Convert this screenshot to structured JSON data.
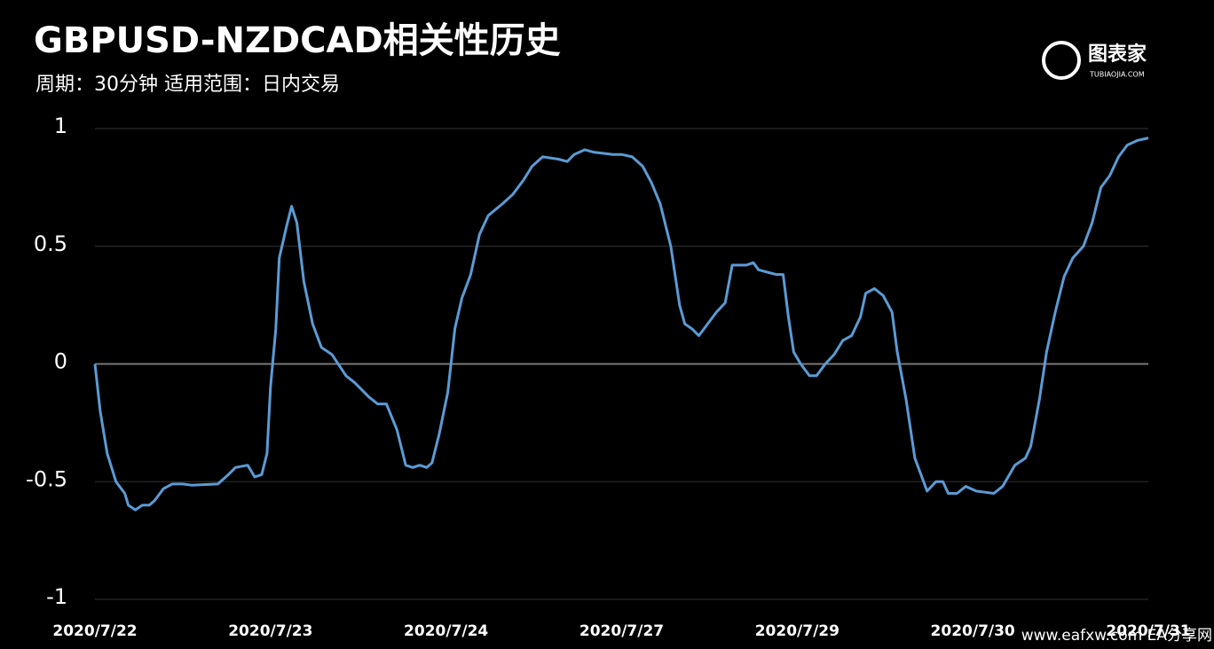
{
  "chart_data": {
    "type": "line",
    "title": "GBPUSD-NZDCAD相关性历史",
    "subtitle": "周期：30分钟  适用范围：日内交易",
    "logo": "图表家",
    "logo_sub": "TUBIAOJIA.COM",
    "watermark": "www.eafxw.com   EA分享网",
    "xlim": [
      0,
      6
    ],
    "xticks": [
      {
        "value": 0,
        "label": "2020/7/22"
      },
      {
        "value": 1,
        "label": "2020/7/23"
      },
      {
        "value": 2,
        "label": "2020/7/24"
      },
      {
        "value": 3,
        "label": "2020/7/27"
      },
      {
        "value": 4,
        "label": "2020/7/29"
      },
      {
        "value": 5,
        "label": "2020/7/30"
      },
      {
        "value": 6,
        "label": "2020/7/31"
      }
    ],
    "ylim": [
      -1,
      1
    ],
    "yticks": [
      1,
      0.5,
      0,
      -0.5,
      -1
    ],
    "grid": true,
    "x": [
      0,
      0.03,
      0.07,
      0.12,
      0.17,
      0.19,
      0.23,
      0.27,
      0.31,
      0.34,
      0.39,
      0.44,
      0.5,
      0.55,
      0.7,
      0.76,
      0.8,
      0.87,
      0.91,
      0.95,
      0.98,
      1.0,
      1.03,
      1.05,
      1.09,
      1.12,
      1.15,
      1.19,
      1.24,
      1.29,
      1.35,
      1.43,
      1.48,
      1.56,
      1.61,
      1.66,
      1.72,
      1.77,
      1.81,
      1.85,
      1.89,
      1.92,
      1.96,
      2.01,
      2.05,
      2.09,
      2.14,
      2.19,
      2.24,
      2.32,
      2.38,
      2.44,
      2.49,
      2.55,
      2.64,
      2.69,
      2.73,
      2.79,
      2.84,
      2.95,
      3.0,
      3.06,
      3.12,
      3.17,
      3.22,
      3.28,
      3.33,
      3.36,
      3.4,
      3.44,
      3.49,
      3.54,
      3.59,
      3.63,
      3.71,
      3.75,
      3.78,
      3.83,
      3.88,
      3.92,
      3.95,
      3.98,
      4.02,
      4.07,
      4.11,
      4.16,
      4.21,
      4.26,
      4.31,
      4.36,
      4.39,
      4.44,
      4.49,
      4.54,
      4.57,
      4.62,
      4.67,
      4.74,
      4.79,
      4.83,
      4.86,
      4.91,
      4.96,
      5.02,
      5.07,
      5.12,
      5.17,
      5.24,
      5.3,
      5.33,
      5.38,
      5.42,
      5.47,
      5.52,
      5.57,
      5.63,
      5.68,
      5.73,
      5.78,
      5.83,
      5.88,
      5.94,
      6.0
    ],
    "series": [
      {
        "name": "GBPUSD-NZDCAD",
        "color": "#5b9bd5",
        "values": [
          0,
          -0.2,
          -0.38,
          -0.5,
          -0.55,
          -0.6,
          -0.62,
          -0.6,
          -0.6,
          -0.58,
          -0.53,
          -0.51,
          -0.51,
          -0.515,
          -0.51,
          -0.47,
          -0.44,
          -0.43,
          -0.48,
          -0.47,
          -0.38,
          -0.1,
          0.15,
          0.45,
          0.58,
          0.67,
          0.6,
          0.35,
          0.17,
          0.07,
          0.04,
          -0.05,
          -0.08,
          -0.14,
          -0.17,
          -0.17,
          -0.28,
          -0.43,
          -0.44,
          -0.43,
          -0.44,
          -0.42,
          -0.3,
          -0.12,
          0.15,
          0.28,
          0.38,
          0.55,
          0.63,
          0.68,
          0.72,
          0.78,
          0.84,
          0.88,
          0.87,
          0.86,
          0.89,
          0.91,
          0.9,
          0.89,
          0.89,
          0.88,
          0.84,
          0.77,
          0.68,
          0.5,
          0.25,
          0.17,
          0.15,
          0.12,
          0.17,
          0.22,
          0.26,
          0.42,
          0.42,
          0.43,
          0.4,
          0.39,
          0.38,
          0.38,
          0.2,
          0.05,
          0,
          -0.05,
          -0.05,
          0,
          0.04,
          0.1,
          0.12,
          0.2,
          0.3,
          0.32,
          0.29,
          0.22,
          0.05,
          -0.15,
          -0.4,
          -0.54,
          -0.5,
          -0.5,
          -0.55,
          -0.55,
          -0.52,
          -0.54,
          -0.545,
          -0.55,
          -0.52,
          -0.43,
          -0.4,
          -0.35,
          -0.15,
          0.05,
          0.22,
          0.37,
          0.45,
          0.5,
          0.6,
          0.75,
          0.8,
          0.88,
          0.93,
          0.95,
          0.96
        ]
      }
    ]
  }
}
